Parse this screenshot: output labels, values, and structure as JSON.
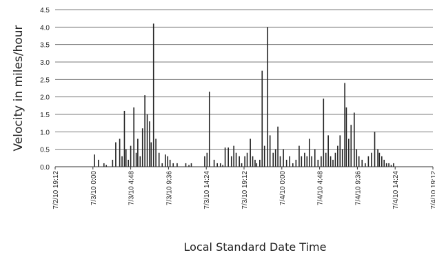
{
  "chart_data": {
    "type": "bar",
    "xlabel": "Local Standard Date Time",
    "ylabel": "Velocity in miles/hour",
    "ylim": [
      0,
      4.5
    ],
    "yticks": [
      "0.0",
      "0.5",
      "1.0",
      "1.5",
      "2.0",
      "2.5",
      "3.0",
      "3.5",
      "4.0",
      "4.5"
    ],
    "xtick_labels": [
      "7/2/10 19:12",
      "7/3/10 0:00",
      "7/3/10 4:48",
      "7/3/10 9:36",
      "7/3/10 14:24",
      "7/3/10 19:12",
      "7/4/10 0:00",
      "7/4/10 4:48",
      "7/4/10 9:36",
      "7/4/10 14:24",
      "7/4/10 19:12"
    ],
    "x_range_hours": [
      0,
      48
    ],
    "grid": "horizontal",
    "series": [
      {
        "hours": [
          5.0,
          5.5,
          6.2,
          6.5,
          7.3,
          7.7,
          8.2,
          8.5,
          8.8,
          9.0,
          9.3,
          9.6,
          10.0,
          10.3,
          10.5,
          10.8,
          11.1,
          11.4,
          11.7,
          12.0,
          12.2,
          12.5,
          12.8,
          13.2,
          13.6,
          14.0,
          14.3,
          14.6,
          15.0,
          15.5,
          16.6,
          17.0,
          17.3,
          19.0,
          19.3,
          19.6,
          20.2,
          20.6,
          21.0,
          21.3,
          21.6,
          22.0,
          22.4,
          22.7,
          23.0,
          23.4,
          23.7,
          24.1,
          24.4,
          24.8,
          25.1,
          25.4,
          25.6,
          26.0,
          26.3,
          26.6,
          27.0,
          27.3,
          27.7,
          28.0,
          28.3,
          28.6,
          29.0,
          29.4,
          29.8,
          30.2,
          30.6,
          31.0,
          31.3,
          31.7,
          32.0,
          32.3,
          32.6,
          33.0,
          33.4,
          33.8,
          34.1,
          34.4,
          34.7,
          35.0,
          35.3,
          35.6,
          35.9,
          36.2,
          36.5,
          36.8,
          37.0,
          37.3,
          37.6,
          38.0,
          38.3,
          38.6,
          39.0,
          39.4,
          39.8,
          40.2,
          40.6,
          41.0,
          41.2,
          41.5,
          41.8,
          42.1,
          42.4,
          42.7,
          43.0
        ],
        "values": [
          0.35,
          0.2,
          0.1,
          0.05,
          0.2,
          0.7,
          0.8,
          0.3,
          1.6,
          0.5,
          0.2,
          0.6,
          1.7,
          0.4,
          0.8,
          0.3,
          1.1,
          2.05,
          1.5,
          1.3,
          0.7,
          4.1,
          0.8,
          0.4,
          0.1,
          0.35,
          0.3,
          0.2,
          0.1,
          0.1,
          0.1,
          0.05,
          0.1,
          0.3,
          0.4,
          2.15,
          0.2,
          0.1,
          0.1,
          0.05,
          0.55,
          0.55,
          0.3,
          0.6,
          0.4,
          0.3,
          0.1,
          0.3,
          0.4,
          0.8,
          0.3,
          0.2,
          0.1,
          0.2,
          2.75,
          0.6,
          4.0,
          0.9,
          0.4,
          0.5,
          1.15,
          0.3,
          0.5,
          0.2,
          0.3,
          0.1,
          0.2,
          0.6,
          0.3,
          0.4,
          0.3,
          0.8,
          0.3,
          0.5,
          0.2,
          0.3,
          1.95,
          0.4,
          0.9,
          0.3,
          0.2,
          0.4,
          0.6,
          0.9,
          0.5,
          2.4,
          1.7,
          0.8,
          1.2,
          1.55,
          0.5,
          0.3,
          0.2,
          0.1,
          0.3,
          0.4,
          1.0,
          0.5,
          0.4,
          0.3,
          0.2,
          0.1,
          0.1,
          0.05,
          0.1
        ]
      }
    ]
  }
}
